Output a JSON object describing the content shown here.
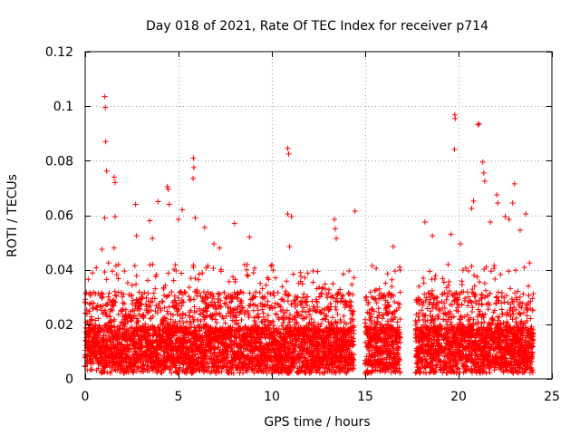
{
  "chart_data": {
    "type": "scatter",
    "title": "Day 018 of 2021, Rate Of TEC Index for receiver p714",
    "xlabel": "GPS time / hours",
    "ylabel": "ROTI / TECUs",
    "xlim": [
      0,
      25
    ],
    "ylim": [
      0,
      0.12
    ],
    "xticks": [
      0,
      5,
      10,
      15,
      20,
      25
    ],
    "xtick_labels": [
      "0",
      "5",
      "10",
      "15",
      "20",
      "25"
    ],
    "yticks": [
      0,
      0.02,
      0.04,
      0.06,
      0.08,
      0.1,
      0.12
    ],
    "ytick_labels": [
      "0",
      "0.02",
      "0.04",
      "0.06",
      "0.08",
      "0.1",
      "0.12"
    ],
    "grid": true,
    "marker": "+",
    "series": [
      {
        "name": "ROTI",
        "color": "#ff0000",
        "segments": [
          [
            0.0,
            14.4
          ],
          [
            15.0,
            16.9
          ],
          [
            17.7,
            24.0
          ]
        ],
        "x": [
          1.05,
          1.08,
          1.1,
          1.15,
          1.55,
          1.6,
          1.6,
          1.05,
          0.9,
          1.25,
          1.55,
          2.1,
          2.7,
          2.75,
          3.45,
          3.6,
          3.9,
          4.4,
          4.45,
          4.5,
          5.0,
          5.2,
          5.8,
          5.82,
          5.78,
          5.9,
          6.4,
          6.9,
          7.2,
          8.0,
          8.8,
          10.85,
          10.9,
          10.85,
          11.05,
          10.95,
          13.35,
          13.4,
          13.45,
          14.45,
          15.2,
          16.2,
          16.5,
          16.6,
          18.2,
          18.6,
          19.8,
          19.82,
          19.78,
          19.6,
          20.1,
          20.7,
          20.8,
          21.05,
          21.1,
          21.3,
          21.35,
          21.4,
          21.7,
          22.05,
          22.1,
          22.5,
          22.7,
          22.9,
          23.0,
          23.3,
          23.6,
          23.8
        ],
        "y": [
          0.1035,
          0.0995,
          0.087,
          0.0762,
          0.074,
          0.072,
          0.0595,
          0.059,
          0.0475,
          0.0425,
          0.048,
          0.0395,
          0.064,
          0.0525,
          0.058,
          0.0515,
          0.065,
          0.0705,
          0.0695,
          0.064,
          0.0585,
          0.062,
          0.081,
          0.0775,
          0.0735,
          0.059,
          0.0555,
          0.0495,
          0.048,
          0.057,
          0.052,
          0.0845,
          0.0825,
          0.0605,
          0.0595,
          0.0485,
          0.0585,
          0.055,
          0.0515,
          0.0615,
          0.024,
          0.0385,
          0.0485,
          0.0395,
          0.0575,
          0.0525,
          0.0968,
          0.0955,
          0.0842,
          0.053,
          0.0495,
          0.0625,
          0.0652,
          0.0932,
          0.0935,
          0.0795,
          0.0755,
          0.0725,
          0.0575,
          0.0675,
          0.0645,
          0.0595,
          0.0585,
          0.0645,
          0.0715,
          0.0545,
          0.0605,
          0.0425
        ]
      }
    ]
  }
}
